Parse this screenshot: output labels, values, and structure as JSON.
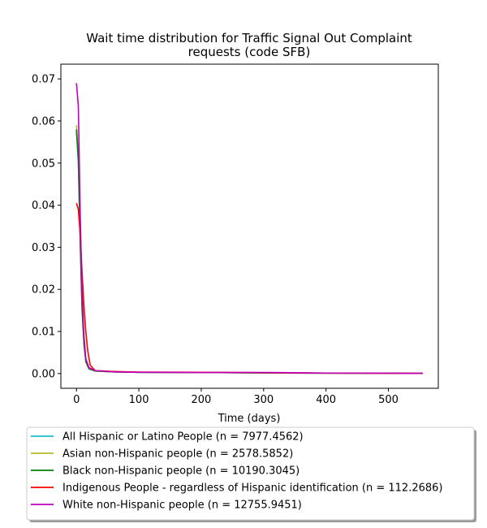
{
  "chart_data": {
    "type": "line",
    "title_lines": [
      "Wait time distribution  for Traffic Signal Out Complaint",
      "requests (code SFB)"
    ],
    "xlabel": "Time (days)",
    "ylabel": "",
    "xlim": [
      -25,
      580
    ],
    "ylim": [
      -0.0035,
      0.0735
    ],
    "x_ticks": [
      0,
      100,
      200,
      300,
      400,
      500
    ],
    "x_tick_labels": [
      "0",
      "100",
      "200",
      "300",
      "400",
      "500"
    ],
    "y_ticks": [
      0.0,
      0.01,
      0.02,
      0.03,
      0.04,
      0.05,
      0.06,
      0.07
    ],
    "y_tick_labels": [
      "0.00",
      "0.01",
      "0.02",
      "0.03",
      "0.04",
      "0.05",
      "0.06",
      "0.07"
    ],
    "grid": false,
    "legend_position": "below",
    "series": [
      {
        "name": "All Hispanic or Latino People (n = 7977.4562)",
        "color": "#17becf",
        "points": [
          [
            0,
            0.0575
          ],
          [
            3,
            0.05
          ],
          [
            6,
            0.032
          ],
          [
            9,
            0.016
          ],
          [
            12,
            0.008
          ],
          [
            15,
            0.003
          ],
          [
            20,
            0.0012
          ],
          [
            30,
            0.0006
          ],
          [
            60,
            0.0004
          ],
          [
            100,
            0.0003
          ],
          [
            200,
            0.00025
          ],
          [
            300,
            0.00015
          ],
          [
            400,
            0.0001
          ],
          [
            555,
            5e-05
          ]
        ]
      },
      {
        "name": "Asian non-Hispanic people (n = 2578.5852)",
        "color": "#bcbd22",
        "points": [
          [
            0,
            0.059
          ],
          [
            3,
            0.052
          ],
          [
            6,
            0.033
          ],
          [
            9,
            0.017
          ],
          [
            12,
            0.008
          ],
          [
            15,
            0.003
          ],
          [
            20,
            0.0012
          ],
          [
            30,
            0.0006
          ],
          [
            60,
            0.0004
          ],
          [
            100,
            0.0003
          ],
          [
            200,
            0.00025
          ],
          [
            300,
            0.00015
          ],
          [
            400,
            0.0001
          ],
          [
            555,
            5e-05
          ]
        ]
      },
      {
        "name": "Black non-Hispanic people (n = 10190.3045)",
        "color": "#008000",
        "points": [
          [
            0,
            0.058
          ],
          [
            3,
            0.051
          ],
          [
            6,
            0.031
          ],
          [
            9,
            0.015
          ],
          [
            12,
            0.007
          ],
          [
            15,
            0.0028
          ],
          [
            20,
            0.0011
          ],
          [
            30,
            0.0006
          ],
          [
            60,
            0.0004
          ],
          [
            100,
            0.0003
          ],
          [
            200,
            0.00025
          ],
          [
            300,
            0.00015
          ],
          [
            400,
            0.0001
          ],
          [
            555,
            5e-05
          ]
        ]
      },
      {
        "name": "Indigenous People - regardless of Hispanic identification (n = 112.2686)",
        "color": "#ff0000",
        "points": [
          [
            0,
            0.0405
          ],
          [
            3,
            0.039
          ],
          [
            6,
            0.033
          ],
          [
            9,
            0.024
          ],
          [
            12,
            0.016
          ],
          [
            15,
            0.01
          ],
          [
            18,
            0.0055
          ],
          [
            22,
            0.002
          ],
          [
            30,
            0.0007
          ],
          [
            60,
            0.0005
          ],
          [
            100,
            0.00035
          ],
          [
            200,
            0.0003
          ],
          [
            300,
            0.0002
          ],
          [
            400,
            0.0001
          ],
          [
            555,
            5e-05
          ]
        ]
      },
      {
        "name": "White non-Hispanic people (n = 12755.9451)",
        "color": "#bf00bf",
        "points": [
          [
            0,
            0.069
          ],
          [
            3,
            0.0635
          ],
          [
            6,
            0.038
          ],
          [
            9,
            0.019
          ],
          [
            12,
            0.009
          ],
          [
            15,
            0.0035
          ],
          [
            20,
            0.0014
          ],
          [
            30,
            0.0007
          ],
          [
            60,
            0.0004
          ],
          [
            100,
            0.0003
          ],
          [
            200,
            0.00025
          ],
          [
            310,
            0.00025
          ],
          [
            400,
            0.00012
          ],
          [
            555,
            5e-05
          ]
        ]
      }
    ]
  }
}
